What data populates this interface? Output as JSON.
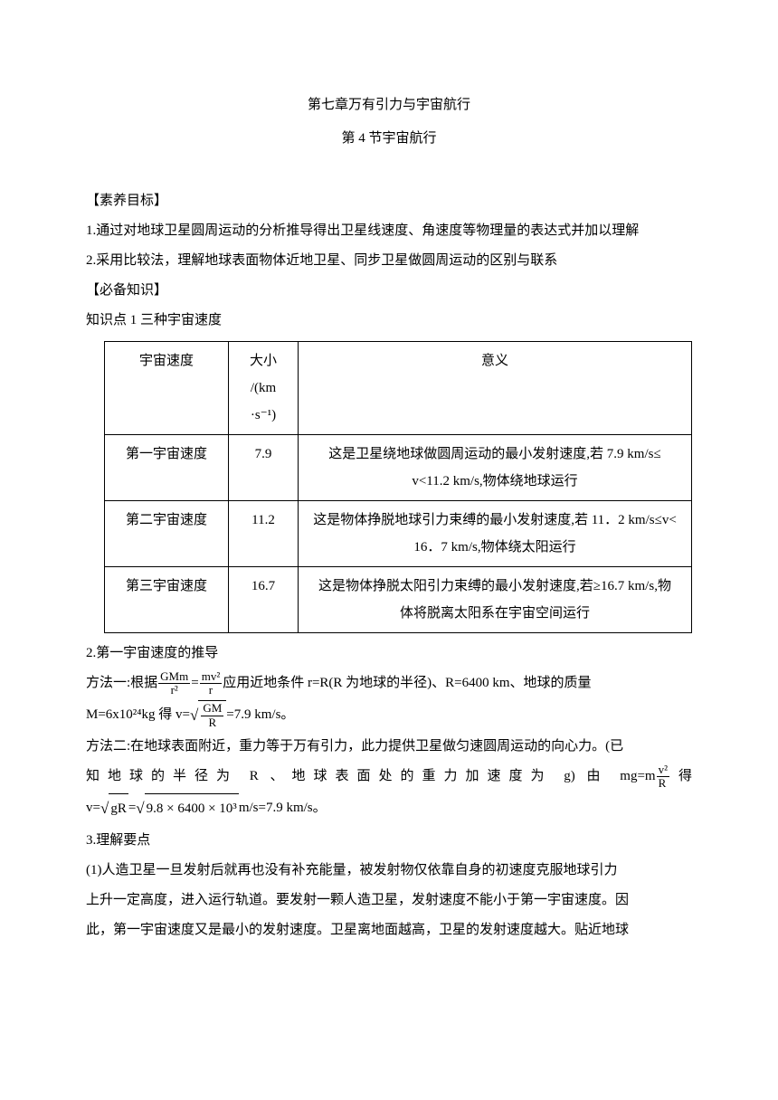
{
  "chapter_title": "第七章万有引力与宇宙航行",
  "section_title": "第 4 节宇宙航行",
  "goals_header": "【素养目标】",
  "goal1": "1.通过对地球卫星圆周运动的分析推导得出卫星线速度、角速度等物理量的表达式并加以理解",
  "goal2": "2.采用比较法，理解地球表面物体近地卫星、同步卫星做圆周运动的区别与联系",
  "knowledge_header": "【必备知识】",
  "knowledge_point1": "知识点 1 三种宇宙速度",
  "table": {
    "header_col1": "宇宙速度",
    "header_col2_a": "大小",
    "header_col2_b": "/(km",
    "header_col2_c": "·s⁻¹)",
    "header_col3": "意义",
    "row1_name": "第一宇宙速度",
    "row1_size": "7.9",
    "row1_meaning_a": "这是卫星绕地球做圆周运动的最小发射速度,若 7.9 km/s≤",
    "row1_meaning_b": "v<11.2 km/s,物体绕地球运行",
    "row2_name": "第二宇宙速度",
    "row2_size": "11.2",
    "row2_meaning_a": "这是物体挣脱地球引力束缚的最小发射速度,若 11．2 km/s≤v<",
    "row2_meaning_b": "16．7 km/s,物体绕太阳运行",
    "row3_name": "第三宇宙速度",
    "row3_size": "16.7",
    "row3_meaning_a": "这是物体挣脱太阳引力束缚的最小发射速度,若≥16.7 km/s,物",
    "row3_meaning_b": "体将脱离太阳系在宇宙空间运行"
  },
  "deriv_header": "2.第一宇宙速度的推导",
  "method1_pre": "方法一:根据",
  "frac1_num": "GMm",
  "frac1_den": "r²",
  "method1_eq": "=",
  "frac2_num": "mv²",
  "frac2_den": "r",
  "method1_post": "应用近地条件 r=R(R 为地球的半径)、R=6400 km、地球的质量",
  "method1b_pre": "M=6x10²⁴kg 得 v=",
  "sqrt1_num": "GM",
  "sqrt1_den": "R",
  "method1b_post": "=7.9 km/s。",
  "method2a": "方法二:在地球表面附近，重力等于万有引力，此力提供卫星做匀速圆周运动的向心力。(已",
  "method2b_pre": "知地球的半径为 R 、地球表面处的重力加速度为 g) 由 mg=m",
  "frac3_num": "v²",
  "frac3_den": "R",
  "method2b_post": "得",
  "method2c_pre": "v=",
  "sqrt2": "gR",
  "method2c_mid": "=",
  "sqrt3": "9.8 × 6400 × 10³",
  "method2c_post": "m/s=7.9 km/s。",
  "key_header": "3.理解要点",
  "key_p1": "(1)人造卫星一旦发射后就再也没有补充能量，被发射物仅依靠自身的初速度克服地球引力",
  "key_p2": "上升一定高度，进入运行轨道。要发射一颗人造卫星，发射速度不能小于第一宇宙速度。因",
  "key_p3": "此，第一宇宙速度又是最小的发射速度。卫星离地面越高，卫星的发射速度越大。贴近地球"
}
